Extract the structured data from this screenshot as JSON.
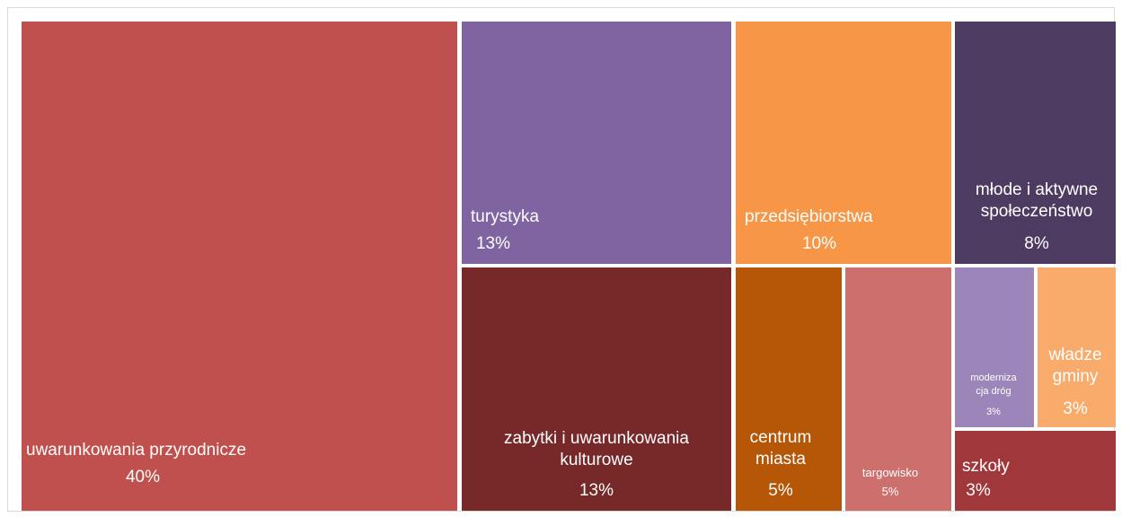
{
  "chart_data": {
    "type": "treemap",
    "items": [
      {
        "label_lines": [
          "uwarunkowania przyrodnicze"
        ],
        "value_label": "40%",
        "value": 40,
        "color": "#C0504D"
      },
      {
        "label_lines": [
          "turystyka"
        ],
        "value_label": "13%",
        "value": 13,
        "color": "#8064A2"
      },
      {
        "label_lines": [
          "zabytki i uwarunkowania",
          "kulturowe"
        ],
        "value_label": "13%",
        "value": 13,
        "color": "#772829"
      },
      {
        "label_lines": [
          "przedsiębiorstwa"
        ],
        "value_label": "10%",
        "value": 10,
        "color": "#F79646"
      },
      {
        "label_lines": [
          "młode i aktywne",
          "społeczeństwo"
        ],
        "value_label": "8%",
        "value": 8,
        "color": "#4D3B62"
      },
      {
        "label_lines": [
          "centrum",
          "miasta"
        ],
        "value_label": "5%",
        "value": 5,
        "color": "#B65708"
      },
      {
        "label_lines": [
          "targowisko"
        ],
        "value_label": "5%",
        "value": 5,
        "color": "#CD6F6D"
      },
      {
        "label_lines": [
          "moderniza",
          "cja dróg"
        ],
        "value_label": "3%",
        "value": 3,
        "color": "#9C85B9"
      },
      {
        "label_lines": [
          "władze",
          "gminy"
        ],
        "value_label": "3%",
        "value": 3,
        "color": "#F9AB6B"
      },
      {
        "label_lines": [
          "szkoły"
        ],
        "value_label": "3%",
        "value": 3,
        "color": "#A0373A"
      }
    ]
  }
}
